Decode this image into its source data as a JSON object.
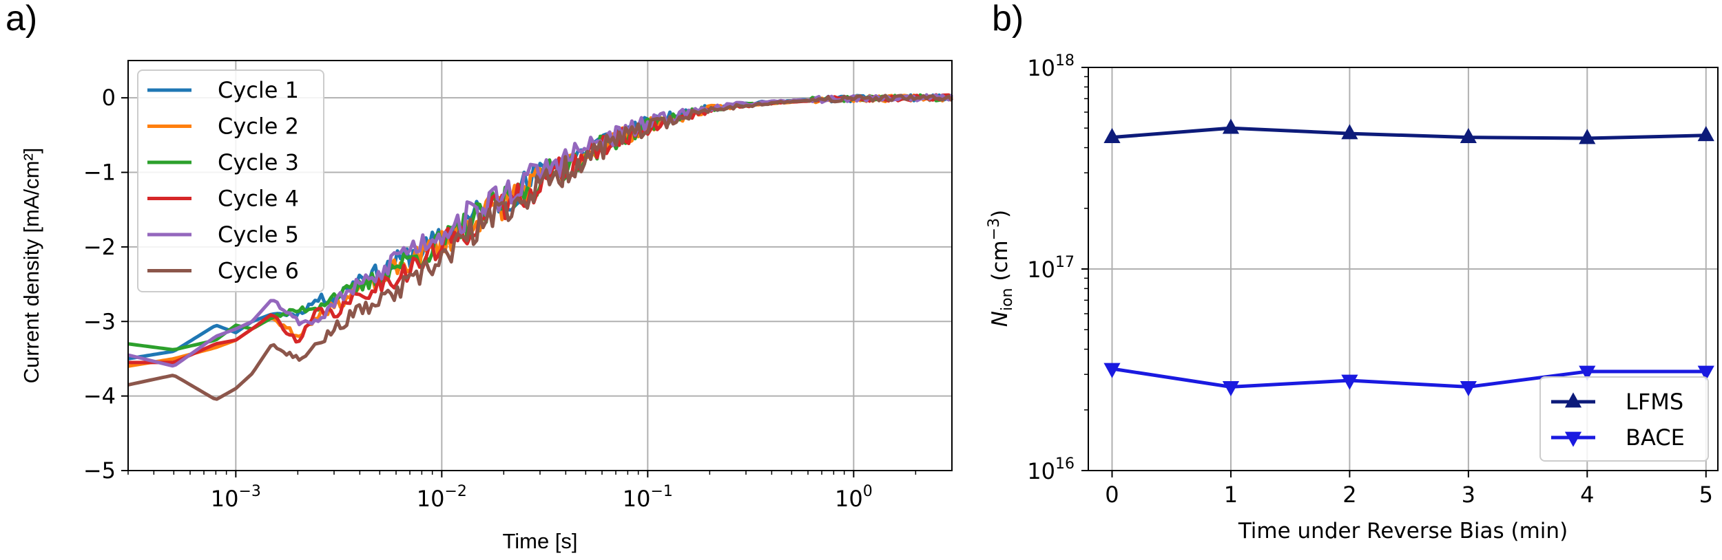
{
  "chart_data": [
    {
      "panel_label": "a)",
      "type": "line",
      "xscale": "log",
      "xlim": [
        0.0003,
        3
      ],
      "ylim": [
        -5,
        0.5
      ],
      "xlabel": "Time [s]",
      "ylabel": "Current density [mA/cm²]",
      "x_ticks": [
        {
          "value": 0.001,
          "base": "10",
          "exp": "−3"
        },
        {
          "value": 0.01,
          "base": "10",
          "exp": "−2"
        },
        {
          "value": 0.1,
          "base": "10",
          "exp": "−1"
        },
        {
          "value": 1,
          "base": "10",
          "exp": "0"
        }
      ],
      "y_ticks": [
        {
          "value": 0,
          "label": "0"
        },
        {
          "value": -1,
          "label": "−1"
        },
        {
          "value": -2,
          "label": "−2"
        },
        {
          "value": -3,
          "label": "−3"
        },
        {
          "value": -4,
          "label": "−4"
        },
        {
          "value": -5,
          "label": "−5"
        }
      ],
      "grid": true,
      "legend_position": "top-left",
      "series": [
        {
          "name": "Cycle 1",
          "color": "#1f77b4",
          "seed": 11,
          "x": [
            0.0003,
            0.0005,
            0.0008,
            0.001,
            0.0012,
            0.0015,
            0.002,
            0.0025,
            0.003,
            0.004,
            0.005,
            0.006,
            0.008,
            0.01,
            0.015,
            0.02,
            0.03,
            0.05,
            0.07,
            0.1,
            0.15,
            0.2,
            0.3,
            0.5,
            0.7,
            1,
            1.5,
            2,
            3
          ],
          "y": [
            -3.5,
            -3.4,
            -3.05,
            -3.15,
            -3.0,
            -2.9,
            -2.9,
            -2.7,
            -2.7,
            -2.4,
            -2.35,
            -2.2,
            -2.05,
            -1.9,
            -1.55,
            -1.35,
            -1.05,
            -0.7,
            -0.5,
            -0.35,
            -0.22,
            -0.14,
            -0.08,
            -0.04,
            -0.02,
            -0.01,
            -0.01,
            0,
            0
          ]
        },
        {
          "name": "Cycle 2",
          "color": "#ff7f0e",
          "seed": 23,
          "x": [
            0.0003,
            0.0005,
            0.0008,
            0.001,
            0.0012,
            0.0015,
            0.002,
            0.0025,
            0.003,
            0.004,
            0.005,
            0.006,
            0.008,
            0.01,
            0.015,
            0.02,
            0.03,
            0.05,
            0.07,
            0.1,
            0.15,
            0.2,
            0.3,
            0.5,
            0.7,
            1,
            1.5,
            2,
            3
          ],
          "y": [
            -3.6,
            -3.5,
            -3.35,
            -3.25,
            -3.1,
            -2.95,
            -3.2,
            -2.9,
            -2.8,
            -2.55,
            -2.45,
            -2.3,
            -2.1,
            -1.95,
            -1.6,
            -1.4,
            -1.1,
            -0.75,
            -0.55,
            -0.38,
            -0.24,
            -0.15,
            -0.09,
            -0.05,
            -0.02,
            -0.01,
            -0.01,
            0,
            0
          ]
        },
        {
          "name": "Cycle 3",
          "color": "#2ca02c",
          "seed": 37,
          "x": [
            0.0003,
            0.0005,
            0.0008,
            0.001,
            0.0012,
            0.0015,
            0.002,
            0.0025,
            0.003,
            0.004,
            0.005,
            0.006,
            0.008,
            0.01,
            0.015,
            0.02,
            0.03,
            0.05,
            0.07,
            0.1,
            0.15,
            0.2,
            0.3,
            0.5,
            0.7,
            1,
            1.5,
            2,
            3
          ],
          "y": [
            -3.3,
            -3.38,
            -3.25,
            -3.05,
            -3.1,
            -2.95,
            -2.85,
            -2.8,
            -2.65,
            -2.55,
            -2.4,
            -2.25,
            -2.1,
            -1.95,
            -1.6,
            -1.4,
            -1.1,
            -0.75,
            -0.55,
            -0.37,
            -0.23,
            -0.15,
            -0.09,
            -0.05,
            -0.02,
            -0.01,
            0,
            0,
            0
          ]
        },
        {
          "name": "Cycle 4",
          "color": "#d62728",
          "seed": 41,
          "x": [
            0.0003,
            0.0005,
            0.0008,
            0.001,
            0.0012,
            0.0015,
            0.002,
            0.0025,
            0.003,
            0.004,
            0.005,
            0.006,
            0.008,
            0.01,
            0.015,
            0.02,
            0.03,
            0.05,
            0.07,
            0.1,
            0.15,
            0.2,
            0.3,
            0.5,
            0.7,
            1,
            1.5,
            2,
            3
          ],
          "y": [
            -3.55,
            -3.55,
            -3.3,
            -3.25,
            -3.1,
            -2.9,
            -3.3,
            -2.85,
            -2.9,
            -2.65,
            -2.5,
            -2.4,
            -2.2,
            -2.0,
            -1.65,
            -1.45,
            -1.15,
            -0.78,
            -0.57,
            -0.4,
            -0.25,
            -0.16,
            -0.1,
            -0.05,
            -0.03,
            -0.01,
            -0.01,
            0,
            0
          ]
        },
        {
          "name": "Cycle 5",
          "color": "#9467bd",
          "seed": 53,
          "x": [
            0.0003,
            0.0005,
            0.0008,
            0.001,
            0.0012,
            0.0015,
            0.002,
            0.0025,
            0.003,
            0.004,
            0.005,
            0.006,
            0.008,
            0.01,
            0.015,
            0.02,
            0.03,
            0.05,
            0.07,
            0.1,
            0.15,
            0.2,
            0.3,
            0.5,
            0.7,
            1,
            1.5,
            2,
            3
          ],
          "y": [
            -3.45,
            -3.6,
            -3.2,
            -3.1,
            -3.0,
            -2.7,
            -3.0,
            -3.0,
            -2.75,
            -2.5,
            -2.4,
            -2.1,
            -1.95,
            -1.8,
            -1.5,
            -1.3,
            -1.0,
            -0.68,
            -0.5,
            -0.34,
            -0.21,
            -0.13,
            -0.08,
            -0.04,
            -0.02,
            -0.01,
            0,
            0,
            0
          ]
        },
        {
          "name": "Cycle 6",
          "color": "#8c564b",
          "seed": 67,
          "x": [
            0.0003,
            0.0005,
            0.0008,
            0.001,
            0.0012,
            0.0015,
            0.002,
            0.0025,
            0.003,
            0.004,
            0.005,
            0.006,
            0.008,
            0.01,
            0.015,
            0.02,
            0.03,
            0.05,
            0.07,
            0.1,
            0.15,
            0.2,
            0.3,
            0.5,
            0.7,
            1,
            1.5,
            2,
            3
          ],
          "y": [
            -3.85,
            -3.72,
            -4.05,
            -3.9,
            -3.7,
            -3.3,
            -3.5,
            -3.3,
            -3.1,
            -2.85,
            -2.75,
            -2.6,
            -2.4,
            -2.15,
            -1.75,
            -1.5,
            -1.2,
            -0.8,
            -0.58,
            -0.4,
            -0.25,
            -0.16,
            -0.1,
            -0.05,
            -0.03,
            -0.01,
            -0.01,
            0,
            0
          ]
        }
      ]
    },
    {
      "panel_label": "b)",
      "type": "line",
      "yscale": "log",
      "xlim": [
        -0.2,
        5.1
      ],
      "ylim": [
        1e+16,
        1e+18
      ],
      "xlabel": "Time under Reverse Bias (min)",
      "ylabel_base": "N",
      "ylabel_sub": "ion",
      "ylabel_unit_open": " (cm",
      "ylabel_unit_exp": "−3",
      "ylabel_unit_close": ")",
      "x_ticks": [
        {
          "value": 0,
          "label": "0"
        },
        {
          "value": 1,
          "label": "1"
        },
        {
          "value": 2,
          "label": "2"
        },
        {
          "value": 3,
          "label": "3"
        },
        {
          "value": 4,
          "label": "4"
        },
        {
          "value": 5,
          "label": "5"
        }
      ],
      "y_ticks": [
        {
          "value": 1e+16,
          "base": "10",
          "exp": "16"
        },
        {
          "value": 1e+17,
          "base": "10",
          "exp": "17"
        },
        {
          "value": 1e+18,
          "base": "10",
          "exp": "18"
        }
      ],
      "grid": true,
      "legend_position": "lower-right",
      "x": [
        0,
        1,
        2,
        3,
        4,
        5
      ],
      "series": [
        {
          "name": "LFMS",
          "color": "#0d1b7a",
          "marker": "triangle-up",
          "values": [
            4.5e+17,
            5e+17,
            4.7e+17,
            4.5e+17,
            4.45e+17,
            4.6e+17
          ]
        },
        {
          "name": "BACE",
          "color": "#1a1ae0",
          "marker": "triangle-down",
          "values": [
            3.2e+16,
            2.6e+16,
            2.8e+16,
            2.6e+16,
            3.1e+16,
            3.1e+16
          ]
        }
      ]
    }
  ]
}
